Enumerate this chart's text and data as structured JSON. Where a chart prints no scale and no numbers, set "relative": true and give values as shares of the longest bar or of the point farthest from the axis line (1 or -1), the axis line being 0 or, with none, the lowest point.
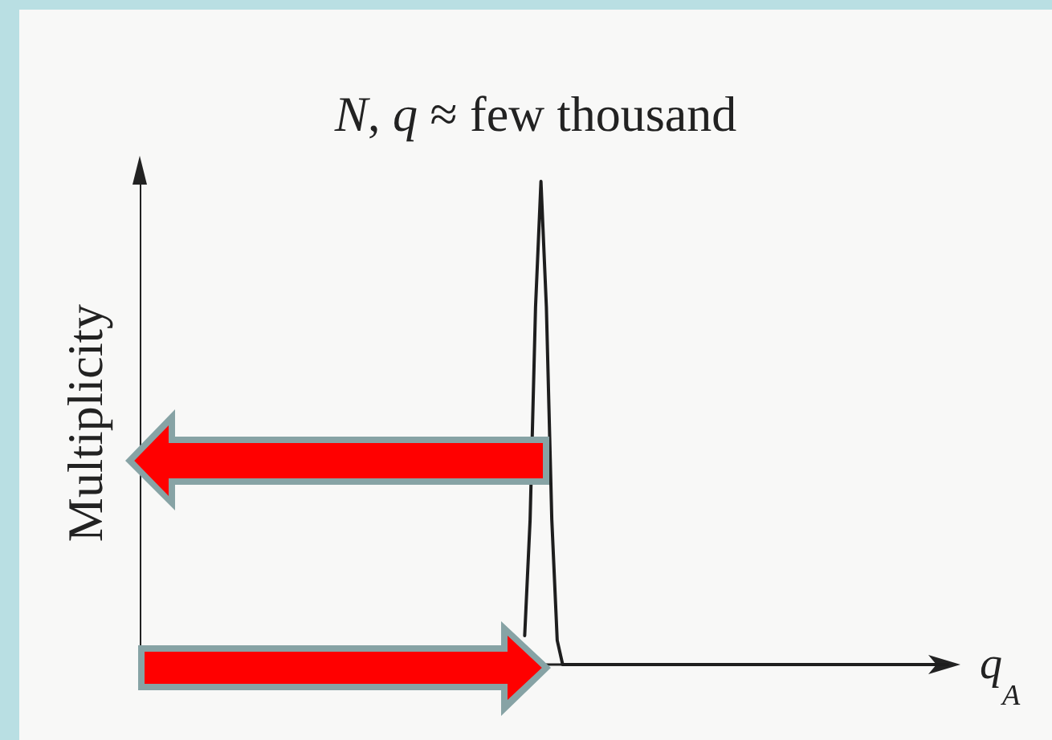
{
  "chart_data": {
    "type": "line",
    "title": "N, q ≈ few thousand",
    "xlabel": "q$_{A}$",
    "ylabel": "Multiplicity",
    "relative": true,
    "marker": "none",
    "categories": [
      null,
      null,
      null,
      null,
      null,
      null,
      null,
      null,
      null,
      null,
      null,
      null,
      null,
      null,
      null,
      null,
      null,
      null,
      null,
      null,
      null,
      null,
      null,
      null,
      null,
      null,
      null,
      null,
      null,
      null,
      null,
      null,
      null,
      null,
      null,
      null,
      null,
      null,
      null,
      null,
      null,
      null,
      null,
      null,
      null,
      null,
      null,
      null,
      null,
      null,
      null,
      null,
      null,
      null,
      null,
      null,
      null,
      null,
      null,
      null,
      null,
      null,
      null,
      null,
      null,
      null,
      null,
      null,
      null,
      null,
      null,
      null,
      null,
      null,
      null,
      null,
      null,
      null,
      null,
      null,
      null,
      null,
      null,
      null,
      null,
      null,
      null,
      null,
      null,
      null,
      null,
      null,
      null,
      null,
      null,
      null,
      null,
      null,
      null,
      null,
      null,
      null,
      null,
      null,
      null,
      null,
      null,
      null,
      null,
      null,
      null,
      null,
      null,
      null,
      null,
      null,
      null,
      null,
      null,
      null,
      null,
      null,
      null,
      null,
      null,
      null,
      null,
      null,
      null,
      null,
      null,
      null,
      null,
      null,
      null,
      null,
      null,
      null,
      null,
      null,
      null,
      null,
      null,
      null,
      null,
      null,
      null,
      null,
      null,
      null
    ],
    "color": "#1e1e1e",
    "values": [
      null,
      null,
      null,
      null,
      null,
      null,
      null,
      null,
      null,
      null,
      null,
      null,
      null,
      null,
      null,
      null,
      null,
      null,
      null,
      null,
      null,
      null,
      null,
      null,
      null,
      null,
      null,
      null,
      null,
      null,
      null,
      null,
      null,
      null,
      null,
      null,
      null,
      null,
      null,
      null,
      null,
      null,
      null,
      null,
      null,
      null,
      null,
      null,
      null,
      null,
      null,
      null,
      null,
      null,
      null,
      null,
      null,
      null,
      null,
      null,
      null,
      null,
      null,
      null,
      null,
      null,
      null,
      null,
      null,
      null,
      null,
      0.06,
      0.3,
      0.74,
      1,
      0.74,
      0.3,
      0.05,
      0,
      0,
      0,
      0,
      0,
      0,
      0,
      0,
      0,
      0,
      0,
      0,
      0,
      0,
      0,
      0,
      0,
      0,
      0,
      0,
      0,
      0,
      0,
      0,
      0,
      0,
      0,
      0,
      0,
      0,
      0,
      0,
      0,
      0,
      0,
      0,
      0,
      0,
      0,
      0,
      0,
      0,
      0,
      0,
      0,
      0,
      0,
      0,
      0,
      0,
      0,
      0,
      0,
      0,
      0,
      0,
      0,
      0,
      0,
      0,
      0,
      0,
      0,
      0,
      0,
      0,
      0,
      0,
      0,
      0,
      0,
      0
    ]
  }
}
